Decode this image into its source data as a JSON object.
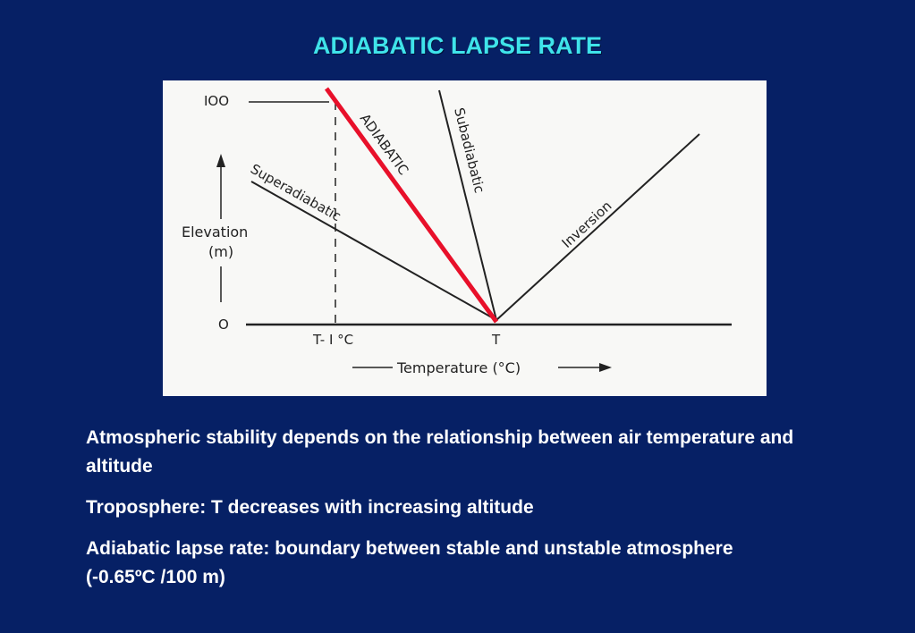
{
  "slide": {
    "title": "ADIABATIC LAPSE RATE"
  },
  "diagram": {
    "y_top_label": "IOO",
    "y_zero_label": "O",
    "y_axis_label_line1": "Elevation",
    "y_axis_label_line2": "(m)",
    "x_tick_left": "T- I °C",
    "x_tick_T": "T",
    "x_axis_label": "Temperature (°C)",
    "line_labels": {
      "adiabatic": "ADIABATIC",
      "superadiabatic": "Superadiabatic",
      "subadiabatic": "Subadiabatic",
      "inversion": "Inversion"
    },
    "colors": {
      "adiabatic_line": "#e8102a",
      "ink": "#222222"
    }
  },
  "bullets": [
    "Atmospheric stability depends on the relationship between air temperature and altitude",
    "Troposphere: T decreases with increasing altitude",
    "Adiabatic lapse rate: boundary between stable and unstable atmosphere (-0.65ºC /100 m)"
  ]
}
